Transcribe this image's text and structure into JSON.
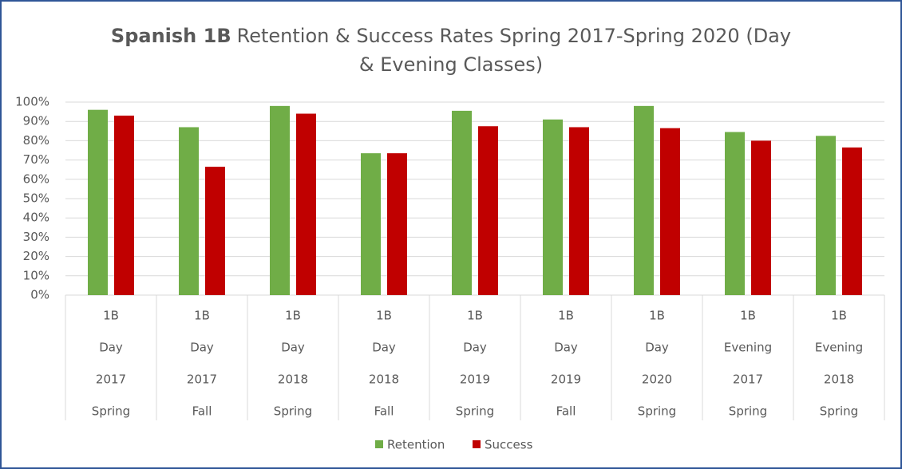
{
  "chart_data": {
    "type": "bar",
    "title": [
      "Spanish 1B",
      "Retention & Success Rates Spring 2017-Spring 2020 (Day",
      "& Evening Classes)"
    ],
    "categories": [
      [
        "1B",
        "Day",
        "2017",
        "Spring"
      ],
      [
        "1B",
        "Day",
        "2017",
        "Fall"
      ],
      [
        "1B",
        "Day",
        "2018",
        "Spring"
      ],
      [
        "1B",
        "Day",
        "2018",
        "Fall"
      ],
      [
        "1B",
        "Day",
        "2019",
        "Spring"
      ],
      [
        "1B",
        "Day",
        "2019",
        "Fall"
      ],
      [
        "1B",
        "Day",
        "2020",
        "Spring"
      ],
      [
        "1B",
        "Evening",
        "2017",
        "Spring"
      ],
      [
        "1B",
        "Evening",
        "2018",
        "Spring"
      ]
    ],
    "series": [
      {
        "name": "Retention",
        "color": "#70ad47",
        "values": [
          96,
          87,
          98,
          73.5,
          95.5,
          91,
          98,
          84.5,
          82.5
        ]
      },
      {
        "name": "Success",
        "color": "#c00000",
        "values": [
          93,
          66.5,
          94,
          73.5,
          87.5,
          87,
          86.5,
          80,
          76.5
        ]
      }
    ],
    "ylim": [
      0,
      100
    ],
    "yticks": [
      {
        "value": 0,
        "label": "0%"
      },
      {
        "value": 10,
        "label": "10%"
      },
      {
        "value": 20,
        "label": "20%"
      },
      {
        "value": 30,
        "label": "30%"
      },
      {
        "value": 40,
        "label": "40%"
      },
      {
        "value": 50,
        "label": "50%"
      },
      {
        "value": 60,
        "label": "60%"
      },
      {
        "value": 70,
        "label": "70%"
      },
      {
        "value": 80,
        "label": "80%"
      },
      {
        "value": 90,
        "label": "90%"
      },
      {
        "value": 100,
        "label": "100%"
      }
    ],
    "grid": true,
    "legend": "bottom"
  }
}
